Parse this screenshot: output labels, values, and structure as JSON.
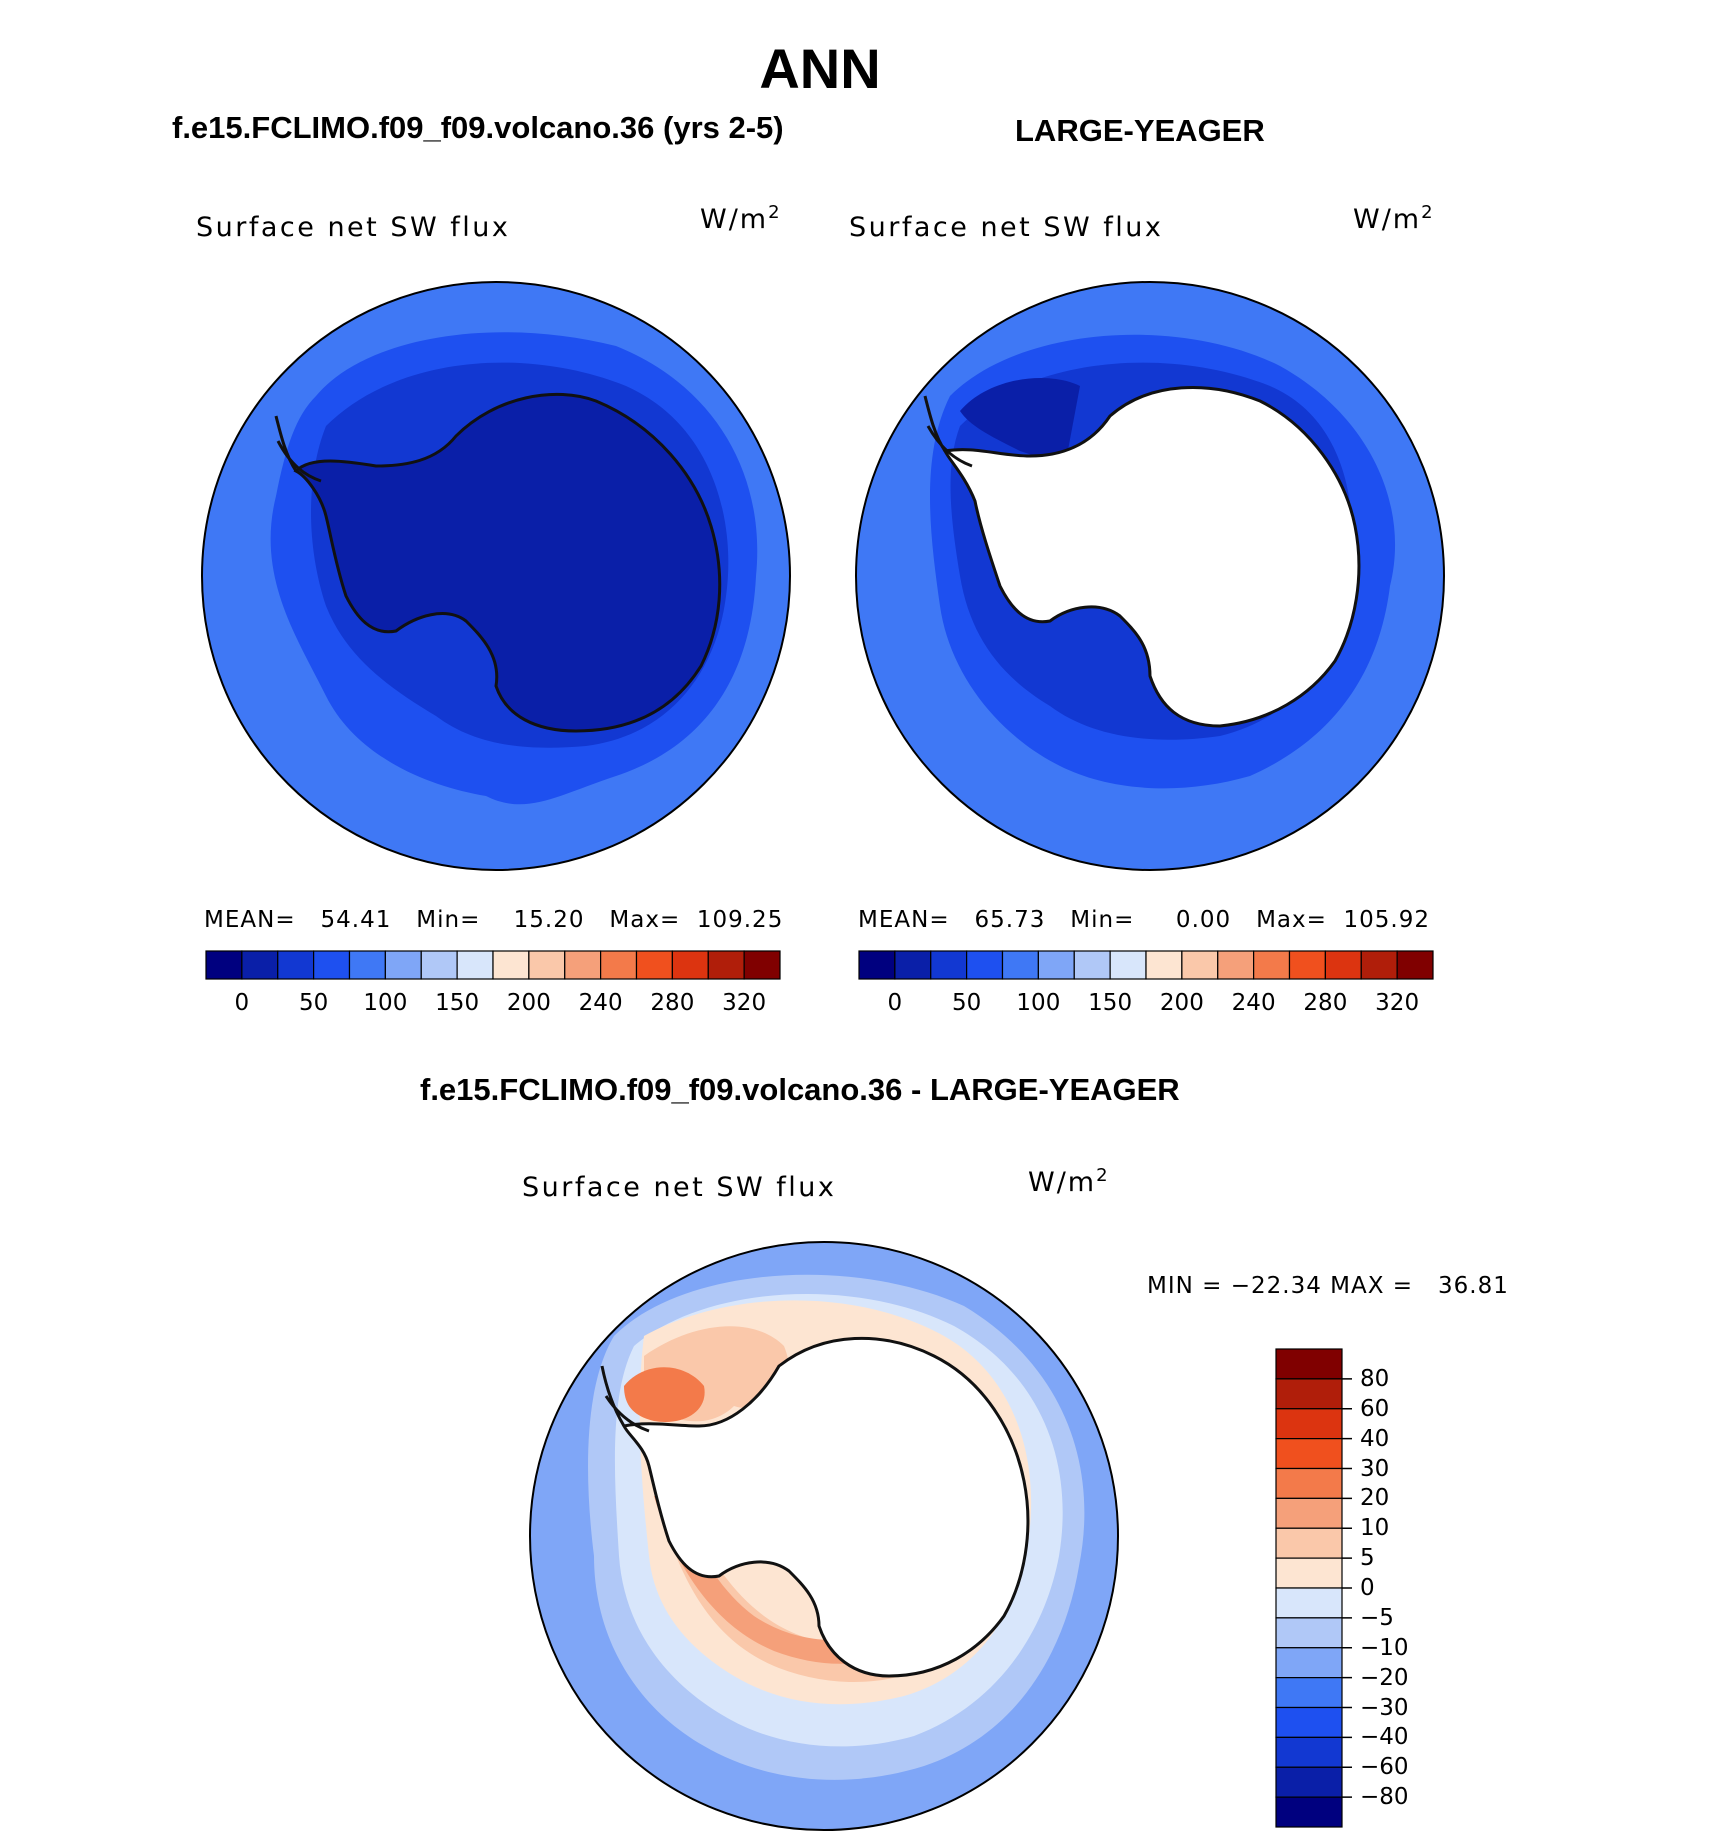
{
  "figure_title": "ANN",
  "panel_left": {
    "case_title": "f.e15.FCLIMO.f09_f09.volcano.36 (yrs 2-5)",
    "field": "Surface net SW flux",
    "units_base": "W/m",
    "units_exp": "2",
    "stats": "MEAN=   54.41   Min=    15.20   Max=  109.25"
  },
  "panel_right": {
    "case_title": "LARGE-YEAGER",
    "field": "Surface net SW flux",
    "units_base": "W/m",
    "units_exp": "2",
    "stats": "MEAN=   65.73   Min=     0.00   Max=  105.92"
  },
  "panel_diff": {
    "case_title": "f.e15.FCLIMO.f09_f09.volcano.36 - LARGE-YEAGER",
    "field": "Surface net SW flux",
    "units_base": "W/m",
    "units_exp": "2",
    "stats": "MIN = −22.34 MAX =   36.81"
  },
  "colorbar_abs": {
    "colors": [
      "#00007f",
      "#0a1fa8",
      "#1238d2",
      "#1e50f0",
      "#3f78f5",
      "#7fa6f7",
      "#b0c8f7",
      "#d8e6fb",
      "#fde5d2",
      "#fac8aa",
      "#f5a07a",
      "#f37a4a",
      "#f0501e",
      "#dc3410",
      "#b01e0a",
      "#800000"
    ],
    "tick_labels": [
      "0",
      "50",
      "100",
      "150",
      "200",
      "240",
      "280",
      "320"
    ]
  },
  "colorbar_diff": {
    "colors": [
      "#800000",
      "#b01e0a",
      "#dc3410",
      "#f0501e",
      "#f37a4a",
      "#f5a07a",
      "#fac8aa",
      "#fde5d2",
      "#d8e6fb",
      "#b0c8f7",
      "#7fa6f7",
      "#3f78f5",
      "#1e50f0",
      "#1238d2",
      "#0a1fa8",
      "#00007f"
    ],
    "tick_labels": [
      "80",
      "60",
      "40",
      "30",
      "20",
      "10",
      "5",
      "0",
      "−5",
      "−10",
      "−20",
      "−30",
      "−40",
      "−60",
      "−80"
    ]
  },
  "map_colors": {
    "ocean_outer": "#3f78f5",
    "ocean_mid": "#1e50f0",
    "ocean_inner": "#1238d2",
    "ice_dark": "#0a1fa8",
    "land_white": "#ffffff",
    "diff_pos_light": "#fde5d2",
    "diff_pos_mid": "#fac8aa",
    "diff_pos_strong": "#f5a07a",
    "diff_pos_peak": "#f37a4a",
    "diff_neg_light": "#d8e6fb",
    "diff_neg_mid": "#b0c8f7",
    "diff_neg_strong": "#7fa6f7"
  }
}
